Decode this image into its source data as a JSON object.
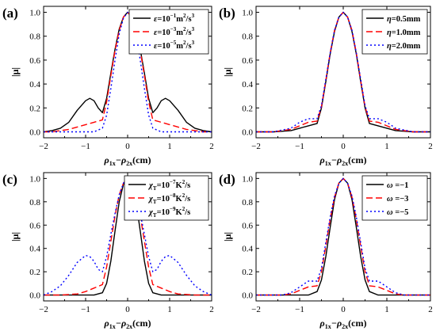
{
  "figure": {
    "panels": [
      "(a)",
      "(b)",
      "(c)",
      "(d)"
    ]
  },
  "chart_data": [
    {
      "panel": "(a)",
      "type": "line",
      "xlabel": {
        "main": "ρ",
        "s1": "1x",
        "mid": "−ρ",
        "s2": "2x",
        "unit": "(cm)"
      },
      "ylabel": "|μ|",
      "xlim": [
        -2,
        2
      ],
      "ylim": [
        -0.05,
        1.05
      ],
      "xticks": [
        -2,
        -1,
        0,
        1,
        2
      ],
      "yticks": [
        "0.0",
        "0.2",
        "0.4",
        "0.6",
        "0.8",
        "1.0"
      ],
      "legend_position": "top-right",
      "series": [
        {
          "legend": {
            "sym": "ε",
            "mid": "=10",
            "exp": "−1",
            "unit": "m",
            "uexp1": "2",
            "unit2": "/s",
            "uexp2": "3"
          },
          "color": "#000000",
          "dash": "solid",
          "x": [
            -2,
            -1.8,
            -1.6,
            -1.4,
            -1.2,
            -1.0,
            -0.9,
            -0.8,
            -0.7,
            -0.6,
            -0.5,
            -0.4,
            -0.3,
            -0.2,
            -0.1,
            0,
            0.1,
            0.2,
            0.3,
            0.4,
            0.5,
            0.6,
            0.7,
            0.8,
            0.9,
            1.0,
            1.2,
            1.4,
            1.6,
            1.8,
            2
          ],
          "y": [
            0.0,
            0.01,
            0.03,
            0.08,
            0.18,
            0.26,
            0.28,
            0.26,
            0.2,
            0.16,
            0.28,
            0.49,
            0.69,
            0.86,
            0.96,
            1.0,
            0.96,
            0.86,
            0.69,
            0.49,
            0.28,
            0.16,
            0.2,
            0.26,
            0.28,
            0.26,
            0.18,
            0.08,
            0.03,
            0.01,
            0.0
          ]
        },
        {
          "legend": {
            "sym": "ε",
            "mid": "=10",
            "exp": "−3",
            "unit": "m",
            "uexp1": "2",
            "unit2": "/s",
            "uexp2": "3"
          },
          "color": "#ff0000",
          "dash": "8,4",
          "x": [
            -2,
            -1.8,
            -1.6,
            -1.4,
            -1.2,
            -1.0,
            -0.8,
            -0.6,
            -0.5,
            -0.4,
            -0.3,
            -0.2,
            -0.1,
            0,
            0.1,
            0.2,
            0.3,
            0.4,
            0.5,
            0.6,
            0.8,
            1.0,
            1.2,
            1.4,
            1.6,
            1.8,
            2
          ],
          "y": [
            0.0,
            0.0,
            0.01,
            0.02,
            0.04,
            0.06,
            0.08,
            0.1,
            0.25,
            0.47,
            0.68,
            0.85,
            0.96,
            1.0,
            0.96,
            0.85,
            0.68,
            0.47,
            0.25,
            0.1,
            0.08,
            0.06,
            0.04,
            0.02,
            0.01,
            0.0,
            0.0
          ]
        },
        {
          "legend": {
            "sym": "ε",
            "mid": "=10",
            "exp": "−5",
            "unit": "m",
            "uexp1": "2",
            "unit2": "/s",
            "uexp2": "3"
          },
          "color": "#0000ff",
          "dash": "2,3",
          "x": [
            -2,
            -1.6,
            -1.2,
            -1.0,
            -0.8,
            -0.6,
            -0.5,
            -0.4,
            -0.3,
            -0.2,
            -0.1,
            0,
            0.1,
            0.2,
            0.3,
            0.4,
            0.5,
            0.6,
            0.8,
            1.0,
            1.2,
            1.6,
            2
          ],
          "y": [
            0.0,
            0.0,
            0.0,
            0.0,
            0.0,
            0.03,
            0.14,
            0.36,
            0.6,
            0.82,
            0.95,
            1.0,
            0.95,
            0.82,
            0.6,
            0.36,
            0.14,
            0.03,
            0.0,
            0.0,
            0.0,
            0.0,
            0.0
          ]
        }
      ]
    },
    {
      "panel": "(b)",
      "type": "line",
      "xlabel": {
        "main": "ρ",
        "s1": "1x",
        "mid": "−ρ",
        "s2": "2x",
        "unit": "(cm)"
      },
      "ylabel": "|μ|",
      "xlim": [
        -2,
        2
      ],
      "ylim": [
        -0.05,
        1.05
      ],
      "xticks": [
        -2,
        -1,
        0,
        1,
        2
      ],
      "yticks": [
        "0.0",
        "0.2",
        "0.4",
        "0.6",
        "0.8",
        "1.0"
      ],
      "legend_position": "top-right",
      "series": [
        {
          "legend": {
            "sym": "η",
            "mid": "=0.5mm"
          },
          "color": "#000000",
          "dash": "solid",
          "x": [
            -2,
            -1.6,
            -1.2,
            -1.0,
            -0.8,
            -0.6,
            -0.5,
            -0.4,
            -0.3,
            -0.2,
            -0.1,
            0,
            0.1,
            0.2,
            0.3,
            0.4,
            0.5,
            0.6,
            0.8,
            1.0,
            1.2,
            1.6,
            2
          ],
          "y": [
            0.0,
            0.0,
            0.01,
            0.03,
            0.05,
            0.07,
            0.2,
            0.42,
            0.65,
            0.84,
            0.96,
            1.0,
            0.96,
            0.84,
            0.65,
            0.42,
            0.2,
            0.07,
            0.05,
            0.03,
            0.01,
            0.0,
            0.0
          ]
        },
        {
          "legend": {
            "sym": "η",
            "mid": "=1.0mm"
          },
          "color": "#ff0000",
          "dash": "8,4",
          "x": [
            -2,
            -1.6,
            -1.2,
            -1.0,
            -0.8,
            -0.6,
            -0.5,
            -0.4,
            -0.3,
            -0.2,
            -0.1,
            0,
            0.1,
            0.2,
            0.3,
            0.4,
            0.5,
            0.6,
            0.8,
            1.0,
            1.2,
            1.6,
            2
          ],
          "y": [
            0.0,
            0.0,
            0.02,
            0.05,
            0.08,
            0.09,
            0.21,
            0.43,
            0.66,
            0.85,
            0.96,
            1.0,
            0.96,
            0.85,
            0.66,
            0.43,
            0.21,
            0.09,
            0.08,
            0.05,
            0.02,
            0.0,
            0.0
          ]
        },
        {
          "legend": {
            "sym": "η",
            "mid": "=2.0mm"
          },
          "color": "#0000ff",
          "dash": "2,3",
          "x": [
            -2,
            -1.6,
            -1.2,
            -1.0,
            -0.8,
            -0.6,
            -0.5,
            -0.4,
            -0.3,
            -0.2,
            -0.1,
            0,
            0.1,
            0.2,
            0.3,
            0.4,
            0.5,
            0.6,
            0.8,
            1.0,
            1.2,
            1.6,
            2
          ],
          "y": [
            0.0,
            0.0,
            0.03,
            0.08,
            0.11,
            0.11,
            0.22,
            0.44,
            0.66,
            0.85,
            0.96,
            1.0,
            0.96,
            0.85,
            0.66,
            0.44,
            0.22,
            0.11,
            0.11,
            0.08,
            0.03,
            0.0,
            0.0
          ]
        }
      ]
    },
    {
      "panel": "(c)",
      "type": "line",
      "xlabel": {
        "main": "ρ",
        "s1": "1x",
        "mid": "−ρ",
        "s2": "2x",
        "unit": "(cm)"
      },
      "ylabel": "|μ|",
      "xlim": [
        -2,
        2
      ],
      "ylim": [
        -0.05,
        1.05
      ],
      "xticks": [
        -2,
        -1,
        0,
        1,
        2
      ],
      "yticks": [
        "0.0",
        "0.2",
        "0.4",
        "0.6",
        "0.8",
        "1.0"
      ],
      "legend_position": "top-right",
      "series": [
        {
          "legend": {
            "sym": "χ",
            "sub": "T",
            "mid": "=10",
            "exp": "−7",
            "unit": "K",
            "uexp1": "2",
            "unit2": "/s"
          },
          "color": "#000000",
          "dash": "solid",
          "x": [
            -2,
            -1.2,
            -0.8,
            -0.6,
            -0.5,
            -0.4,
            -0.3,
            -0.2,
            -0.1,
            0,
            0.1,
            0.2,
            0.3,
            0.4,
            0.5,
            0.6,
            0.8,
            1.2,
            2
          ],
          "y": [
            0.0,
            0.0,
            0.0,
            0.02,
            0.1,
            0.29,
            0.55,
            0.8,
            0.95,
            1.0,
            0.95,
            0.8,
            0.55,
            0.29,
            0.1,
            0.02,
            0.0,
            0.0,
            0.0
          ]
        },
        {
          "legend": {
            "sym": "χ",
            "sub": "T",
            "mid": "=10",
            "exp": "−8",
            "unit": "K",
            "uexp1": "2",
            "unit2": "/s"
          },
          "color": "#ff0000",
          "dash": "8,4",
          "x": [
            -2,
            -1.6,
            -1.2,
            -1.0,
            -0.8,
            -0.6,
            -0.5,
            -0.4,
            -0.3,
            -0.2,
            -0.1,
            0,
            0.1,
            0.2,
            0.3,
            0.4,
            0.5,
            0.6,
            0.8,
            1.0,
            1.2,
            1.6,
            2
          ],
          "y": [
            0.0,
            0.0,
            0.01,
            0.03,
            0.06,
            0.09,
            0.24,
            0.46,
            0.68,
            0.86,
            0.96,
            1.0,
            0.96,
            0.86,
            0.68,
            0.46,
            0.24,
            0.09,
            0.06,
            0.03,
            0.01,
            0.0,
            0.0
          ]
        },
        {
          "legend": {
            "sym": "χ",
            "sub": "T",
            "mid": "=10",
            "exp": "−9",
            "unit": "K",
            "uexp1": "2",
            "unit2": "/s"
          },
          "color": "#0000ff",
          "dash": "2,3",
          "x": [
            -2,
            -1.8,
            -1.6,
            -1.4,
            -1.2,
            -1.0,
            -0.9,
            -0.8,
            -0.7,
            -0.6,
            -0.5,
            -0.4,
            -0.3,
            -0.2,
            -0.1,
            0,
            0.1,
            0.2,
            0.3,
            0.4,
            0.5,
            0.6,
            0.7,
            0.8,
            0.9,
            1.0,
            1.2,
            1.4,
            1.6,
            1.8,
            2
          ],
          "y": [
            0.0,
            0.03,
            0.08,
            0.17,
            0.28,
            0.34,
            0.33,
            0.29,
            0.22,
            0.2,
            0.33,
            0.52,
            0.7,
            0.86,
            0.96,
            1.0,
            0.96,
            0.86,
            0.7,
            0.52,
            0.33,
            0.2,
            0.22,
            0.29,
            0.33,
            0.34,
            0.28,
            0.17,
            0.08,
            0.03,
            0.0
          ]
        }
      ]
    },
    {
      "panel": "(d)",
      "type": "line",
      "xlabel": {
        "main": "ρ",
        "s1": "1x",
        "mid": "−ρ",
        "s2": "2x",
        "unit": "(cm)"
      },
      "ylabel": "|μ|",
      "xlim": [
        -2,
        2
      ],
      "ylim": [
        -0.05,
        1.05
      ],
      "xticks": [
        -2,
        -1,
        0,
        1,
        2
      ],
      "yticks": [
        "0.0",
        "0.2",
        "0.4",
        "0.6",
        "0.8",
        "1.0"
      ],
      "legend_position": "top-right",
      "series": [
        {
          "legend": {
            "sym": "ω",
            "mid": " =−1"
          },
          "color": "#000000",
          "dash": "solid",
          "x": [
            -2,
            -1.2,
            -0.8,
            -0.6,
            -0.5,
            -0.4,
            -0.3,
            -0.2,
            -0.1,
            0,
            0.1,
            0.2,
            0.3,
            0.4,
            0.5,
            0.6,
            0.8,
            1.2,
            2
          ],
          "y": [
            0.0,
            0.0,
            0.0,
            0.03,
            0.13,
            0.33,
            0.58,
            0.82,
            0.96,
            1.0,
            0.96,
            0.82,
            0.58,
            0.33,
            0.13,
            0.03,
            0.0,
            0.0,
            0.0
          ]
        },
        {
          "legend": {
            "sym": "ω",
            "mid": " =−3"
          },
          "color": "#ff0000",
          "dash": "8,4",
          "x": [
            -2,
            -1.4,
            -1.2,
            -1.0,
            -0.8,
            -0.6,
            -0.5,
            -0.4,
            -0.3,
            -0.2,
            -0.1,
            0,
            0.1,
            0.2,
            0.3,
            0.4,
            0.5,
            0.6,
            0.8,
            1.0,
            1.2,
            1.4,
            2
          ],
          "y": [
            0.0,
            0.0,
            0.01,
            0.04,
            0.07,
            0.08,
            0.2,
            0.42,
            0.65,
            0.84,
            0.96,
            1.0,
            0.96,
            0.84,
            0.65,
            0.42,
            0.2,
            0.08,
            0.07,
            0.04,
            0.01,
            0.0,
            0.0
          ]
        },
        {
          "legend": {
            "sym": "ω",
            "mid": " =−5"
          },
          "color": "#0000ff",
          "dash": "2,3",
          "x": [
            -2,
            -1.4,
            -1.2,
            -1.0,
            -0.8,
            -0.6,
            -0.5,
            -0.4,
            -0.3,
            -0.2,
            -0.1,
            0,
            0.1,
            0.2,
            0.3,
            0.4,
            0.5,
            0.6,
            0.8,
            1.0,
            1.2,
            1.4,
            2
          ],
          "y": [
            0.0,
            0.0,
            0.02,
            0.07,
            0.12,
            0.12,
            0.23,
            0.45,
            0.67,
            0.85,
            0.96,
            1.0,
            0.96,
            0.85,
            0.67,
            0.45,
            0.23,
            0.12,
            0.12,
            0.07,
            0.02,
            0.0,
            0.0
          ]
        }
      ]
    }
  ]
}
